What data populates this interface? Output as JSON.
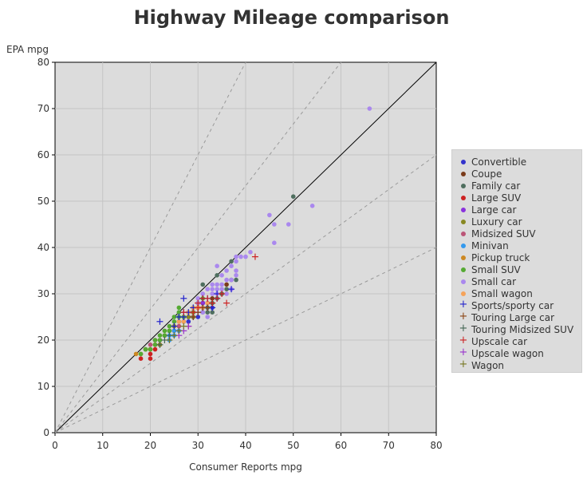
{
  "chart_data": {
    "type": "scatter",
    "title": "Highway Mileage comparison",
    "xlabel": "Consumer Reports mpg",
    "ylabel": "EPA mpg",
    "xlim": [
      0,
      80
    ],
    "ylim": [
      0,
      80
    ],
    "xticks": [
      0,
      10,
      20,
      30,
      40,
      50,
      60,
      70,
      80
    ],
    "yticks": [
      0,
      10,
      20,
      30,
      40,
      50,
      60,
      70,
      80
    ],
    "grid": true,
    "legend_position": "right",
    "reference_lines": [
      {
        "slope": 1,
        "style": "solid"
      },
      {
        "slope": 2,
        "style": "dashed"
      },
      {
        "slope": 1.3333,
        "style": "dashed"
      },
      {
        "slope": 0.75,
        "style": "dashed"
      },
      {
        "slope": 0.5,
        "style": "dashed"
      }
    ],
    "series": [
      {
        "name": "Convertible",
        "marker": "circle",
        "color": "#3333cc",
        "points": [
          [
            27,
            24
          ],
          [
            28,
            25
          ],
          [
            29,
            26
          ],
          [
            30,
            27
          ],
          [
            31,
            28
          ],
          [
            32,
            28
          ],
          [
            33,
            27
          ],
          [
            30,
            25
          ],
          [
            29,
            25
          ],
          [
            28,
            24
          ],
          [
            31,
            27
          ],
          [
            32,
            27
          ]
        ]
      },
      {
        "name": "Coupe",
        "marker": "circle",
        "color": "#7a3b1a",
        "points": [
          [
            29,
            26
          ],
          [
            30,
            27
          ],
          [
            31,
            28
          ],
          [
            32,
            28
          ],
          [
            33,
            29
          ],
          [
            36,
            32
          ],
          [
            35,
            30
          ],
          [
            31,
            27
          ],
          [
            30,
            28
          ]
        ]
      },
      {
        "name": "Family car",
        "marker": "circle",
        "color": "#4f6f5f",
        "points": [
          [
            26,
            24
          ],
          [
            28,
            26
          ],
          [
            29,
            27
          ],
          [
            30,
            27
          ],
          [
            31,
            28
          ],
          [
            32,
            27
          ],
          [
            33,
            28
          ],
          [
            34,
            29
          ],
          [
            35,
            30
          ],
          [
            36,
            31
          ],
          [
            37,
            33
          ],
          [
            38,
            33
          ],
          [
            34,
            34
          ],
          [
            37,
            37
          ],
          [
            50,
            51
          ],
          [
            31,
            32
          ],
          [
            32,
            26
          ],
          [
            33,
            26
          ],
          [
            31,
            26
          ]
        ]
      },
      {
        "name": "Large SUV",
        "marker": "circle",
        "color": "#cc2222",
        "points": [
          [
            18,
            16
          ],
          [
            20,
            16
          ],
          [
            20,
            17
          ],
          [
            21,
            18
          ],
          [
            22,
            19
          ]
        ]
      },
      {
        "name": "Large car",
        "marker": "circle",
        "color": "#8a33dd",
        "points": [
          [
            27,
            24
          ],
          [
            28,
            25
          ],
          [
            29,
            26
          ],
          [
            30,
            27
          ],
          [
            31,
            28
          ],
          [
            32,
            28
          ]
        ]
      },
      {
        "name": "Luxury car",
        "marker": "circle",
        "color": "#888822",
        "points": [
          [
            19,
            18
          ],
          [
            20,
            18
          ],
          [
            21,
            19
          ],
          [
            22,
            19
          ],
          [
            23,
            21
          ],
          [
            24,
            22
          ],
          [
            25,
            23
          ],
          [
            26,
            24
          ],
          [
            27,
            25
          ],
          [
            28,
            25
          ],
          [
            29,
            26
          ],
          [
            30,
            27
          ],
          [
            29,
            25
          ]
        ]
      },
      {
        "name": "Midsized SUV",
        "marker": "circle",
        "color": "#bb5577",
        "points": [
          [
            19,
            18
          ],
          [
            20,
            19
          ],
          [
            21,
            20
          ],
          [
            22,
            20
          ],
          [
            23,
            21
          ],
          [
            24,
            22
          ],
          [
            25,
            22
          ],
          [
            26,
            23
          ]
        ]
      },
      {
        "name": "Minivan",
        "marker": "circle",
        "color": "#3399ee",
        "points": [
          [
            24,
            20
          ],
          [
            25,
            22
          ],
          [
            25,
            21
          ],
          [
            26,
            22
          ],
          [
            24,
            21
          ]
        ]
      },
      {
        "name": "Pickup truck",
        "marker": "circle",
        "color": "#cc8822",
        "points": [
          [
            17,
            17
          ],
          [
            18,
            17
          ],
          [
            19,
            18
          ],
          [
            20,
            18
          ],
          [
            21,
            19
          ]
        ]
      },
      {
        "name": "Small SUV",
        "marker": "circle",
        "color": "#55aa33",
        "points": [
          [
            18,
            17
          ],
          [
            19,
            18
          ],
          [
            20,
            18
          ],
          [
            21,
            19
          ],
          [
            21,
            20
          ],
          [
            22,
            21
          ],
          [
            23,
            21
          ],
          [
            24,
            22
          ],
          [
            24,
            23
          ],
          [
            25,
            24
          ],
          [
            26,
            25
          ],
          [
            26,
            26
          ],
          [
            27,
            25
          ],
          [
            28,
            26
          ],
          [
            29,
            27
          ],
          [
            30,
            28
          ],
          [
            31,
            29
          ],
          [
            26,
            27
          ],
          [
            25,
            25
          ],
          [
            22,
            20
          ],
          [
            23,
            22
          ]
        ]
      },
      {
        "name": "Small car",
        "marker": "circle",
        "color": "#aa88ee",
        "points": [
          [
            66,
            70
          ],
          [
            45,
            47
          ],
          [
            46,
            45
          ],
          [
            49,
            45
          ],
          [
            54,
            49
          ],
          [
            46,
            41
          ],
          [
            41,
            39
          ],
          [
            40,
            38
          ],
          [
            39,
            38
          ],
          [
            38,
            38
          ],
          [
            38,
            37
          ],
          [
            37,
            36
          ],
          [
            36,
            35
          ],
          [
            35,
            34
          ],
          [
            34,
            36
          ],
          [
            38,
            35
          ],
          [
            38,
            34
          ],
          [
            37,
            33
          ],
          [
            36,
            33
          ],
          [
            35,
            32
          ],
          [
            34,
            32
          ],
          [
            33,
            32
          ],
          [
            33,
            31
          ],
          [
            32,
            31
          ],
          [
            31,
            30
          ],
          [
            30,
            29
          ],
          [
            30,
            28
          ],
          [
            32,
            28
          ],
          [
            33,
            30
          ],
          [
            34,
            31
          ],
          [
            35,
            31
          ],
          [
            36,
            30
          ],
          [
            37,
            31
          ],
          [
            32,
            25
          ],
          [
            31,
            26
          ],
          [
            34,
            30
          ]
        ]
      },
      {
        "name": "Small wagon",
        "marker": "circle",
        "color": "#f5a35a",
        "points": [
          [
            26,
            24
          ],
          [
            27,
            24
          ],
          [
            28,
            26
          ],
          [
            29,
            27
          ],
          [
            30,
            27
          ],
          [
            31,
            27
          ],
          [
            32,
            28
          ]
        ]
      },
      {
        "name": "Sports/sporty car",
        "marker": "plus",
        "color": "#2222cc",
        "points": [
          [
            22,
            24
          ],
          [
            27,
            29
          ],
          [
            25,
            23
          ],
          [
            26,
            25
          ],
          [
            27,
            25
          ],
          [
            28,
            26
          ],
          [
            29,
            27
          ],
          [
            30,
            26
          ],
          [
            31,
            27
          ],
          [
            32,
            27
          ],
          [
            37,
            31
          ],
          [
            34,
            30
          ],
          [
            33,
            27
          ],
          [
            29,
            25
          ],
          [
            26,
            22
          ],
          [
            31,
            29
          ],
          [
            32,
            29
          ],
          [
            34,
            29
          ],
          [
            27,
            26
          ]
        ]
      },
      {
        "name": "Touring Large car",
        "marker": "plus",
        "color": "#8b4513",
        "points": [
          [
            29,
            25
          ],
          [
            30,
            26
          ],
          [
            31,
            27
          ],
          [
            32,
            27
          ],
          [
            33,
            28
          ]
        ]
      },
      {
        "name": "Touring Midsized SUV",
        "marker": "plus",
        "color": "#446655",
        "points": [
          [
            22,
            19
          ],
          [
            23,
            20
          ],
          [
            24,
            21
          ]
        ]
      },
      {
        "name": "Upscale car",
        "marker": "plus",
        "color": "#cc2222",
        "points": [
          [
            42,
            38
          ],
          [
            36,
            28
          ],
          [
            34,
            29
          ],
          [
            33,
            28
          ],
          [
            28,
            23
          ],
          [
            32,
            29
          ],
          [
            30,
            27
          ],
          [
            31,
            29
          ],
          [
            27,
            26
          ],
          [
            29,
            26
          ],
          [
            30,
            28
          ],
          [
            35,
            30
          ]
        ]
      },
      {
        "name": "Upscale wagon",
        "marker": "plus",
        "color": "#9933cc",
        "points": [
          [
            26,
            21
          ],
          [
            27,
            22
          ],
          [
            28,
            23
          ]
        ]
      },
      {
        "name": "Wagon",
        "marker": "plus",
        "color": "#777722",
        "points": [
          [
            24,
            20
          ],
          [
            25,
            21
          ],
          [
            26,
            22
          ],
          [
            27,
            23
          ]
        ]
      }
    ]
  }
}
